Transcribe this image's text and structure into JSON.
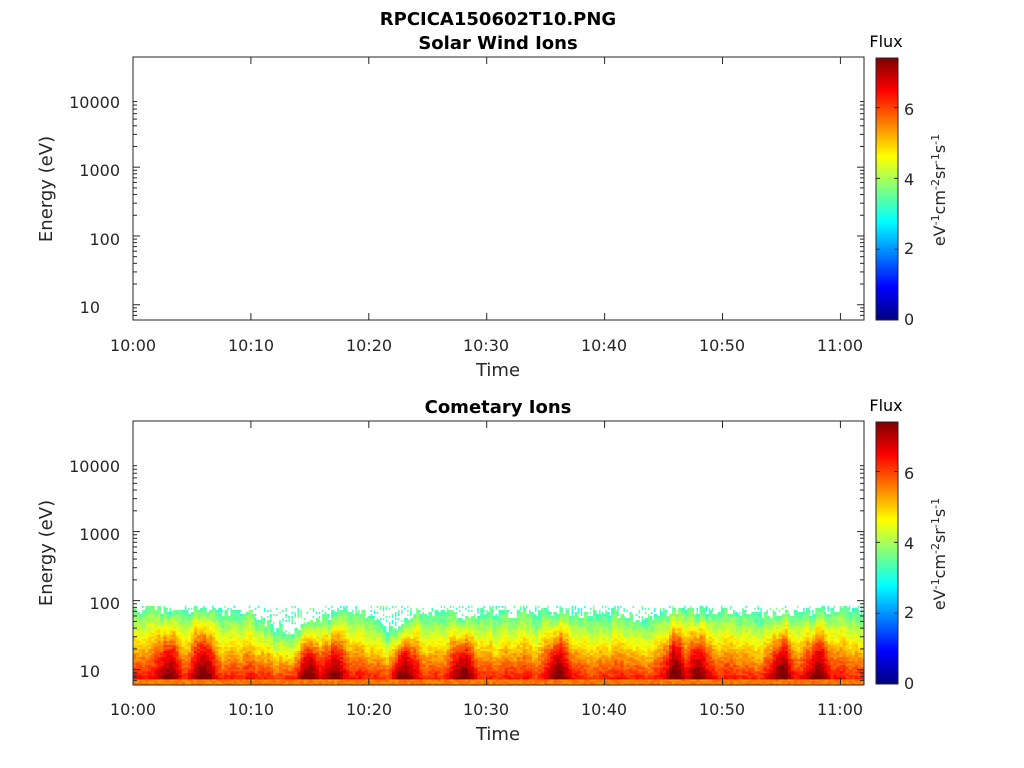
{
  "figure": {
    "title": "RPCICA150602T10.PNG"
  },
  "colorscale": {
    "name": "jet",
    "stops": [
      "#00007f",
      "#0000ff",
      "#007fff",
      "#00ffff",
      "#7fff7f",
      "#ffff00",
      "#ff7f00",
      "#ff0000",
      "#7f0000"
    ]
  },
  "chart_data": [
    {
      "type": "heatmap",
      "title": "Solar Wind Ions",
      "xlabel": "Time",
      "ylabel": "Energy (eV)",
      "y_scale": "log",
      "ylim": [
        6,
        40000
      ],
      "xlim": [
        "10:00",
        "11:02"
      ],
      "x_ticks": [
        "10:00",
        "10:10",
        "10:20",
        "10:30",
        "10:40",
        "10:50",
        "11:00"
      ],
      "y_ticks": [
        "10",
        "100",
        "1000",
        "10000"
      ],
      "colorbar": {
        "label": "Flux",
        "units": "eV-1cm-2sr-1s-1",
        "ticks": [
          "0",
          "2",
          "4",
          "6"
        ],
        "range": [
          0,
          7.4
        ]
      },
      "data": "empty"
    },
    {
      "type": "heatmap",
      "title": "Cometary Ions",
      "xlabel": "Time",
      "ylabel": "Energy (eV)",
      "y_scale": "log",
      "ylim": [
        6,
        40000
      ],
      "xlim": [
        "10:00",
        "11:02"
      ],
      "x_ticks": [
        "10:00",
        "10:10",
        "10:20",
        "10:30",
        "10:40",
        "10:50",
        "11:00"
      ],
      "y_ticks": [
        "10",
        "100",
        "1000",
        "10000"
      ],
      "colorbar": {
        "label": "Flux",
        "units": "eV-1cm-2sr-1s-1",
        "ticks": [
          "0",
          "2",
          "4",
          "6"
        ],
        "range": [
          0,
          7.4
        ]
      },
      "max_energy_profile": {
        "time": [
          "10:00",
          "10:02",
          "10:04",
          "10:06",
          "10:08",
          "10:10",
          "10:12",
          "10:14",
          "10:16",
          "10:18",
          "10:20",
          "10:22",
          "10:24",
          "10:26",
          "10:28",
          "10:30",
          "10:32",
          "10:34",
          "10:36",
          "10:38",
          "10:40",
          "10:42",
          "10:44",
          "10:46",
          "10:48",
          "10:50",
          "10:52",
          "10:54",
          "10:56",
          "10:58",
          "11:00",
          "11:02"
        ],
        "energy_eV": [
          75,
          75,
          70,
          75,
          70,
          65,
          40,
          35,
          60,
          70,
          60,
          35,
          70,
          70,
          60,
          70,
          65,
          70,
          70,
          65,
          70,
          60,
          55,
          75,
          75,
          70,
          65,
          60,
          70,
          70,
          75,
          70
        ]
      },
      "hot_intervals": [
        "10:03",
        "10:06",
        "10:15",
        "10:17",
        "10:23",
        "10:28",
        "10:36",
        "10:46",
        "10:48",
        "10:55",
        "10:58"
      ]
    }
  ]
}
